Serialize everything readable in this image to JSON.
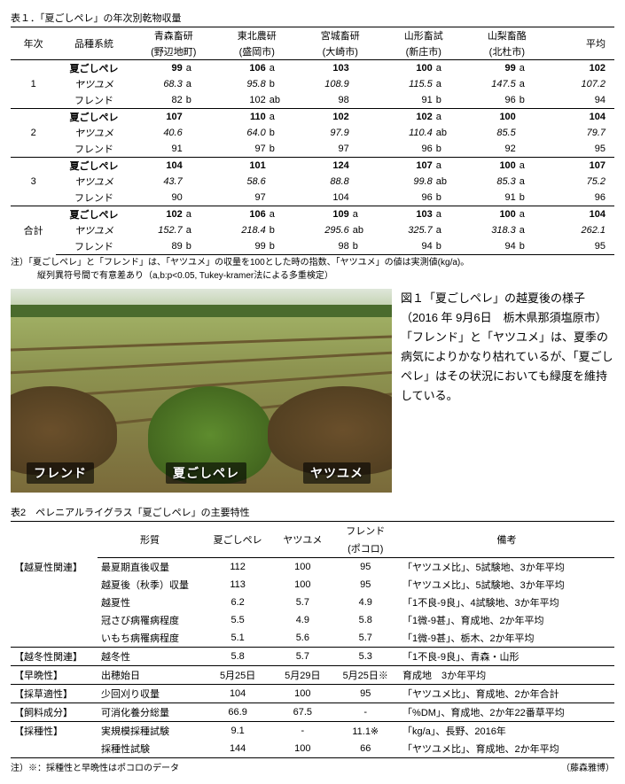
{
  "table1": {
    "title": "表１．「夏ごしペレ」の年次別乾物収量",
    "head": {
      "year": "年次",
      "variety": "品種系統",
      "sites": [
        {
          "name": "青森畜研",
          "sub": "(野辺地町)"
        },
        {
          "name": "東北農研",
          "sub": "(盛岡市)"
        },
        {
          "name": "宮城畜研",
          "sub": "(大崎市)"
        },
        {
          "name": "山形畜試",
          "sub": "(新庄市)"
        },
        {
          "name": "山梨畜酪",
          "sub": "(北杜市)"
        }
      ],
      "avg": "平均"
    },
    "varieties": {
      "natsu": "夏ごしペレ",
      "yatsu": "ヤツユメ",
      "fren": "フレンド"
    },
    "groups": [
      {
        "year": "1",
        "rows": [
          {
            "k": "natsu",
            "bold": true,
            "vals": [
              [
                "99",
                "a"
              ],
              [
                "106",
                "a"
              ],
              [
                "103",
                ""
              ],
              [
                "100",
                "a"
              ],
              [
                "99",
                "a"
              ]
            ],
            "avg": "102"
          },
          {
            "k": "yatsu",
            "ital": true,
            "vals": [
              [
                "68.3",
                "a"
              ],
              [
                "95.8",
                "b"
              ],
              [
                "108.9",
                ""
              ],
              [
                "115.5",
                "a"
              ],
              [
                "147.5",
                "a"
              ]
            ],
            "avg": "107.2"
          },
          {
            "k": "fren",
            "vals": [
              [
                "82",
                "b"
              ],
              [
                "102",
                "ab"
              ],
              [
                "98",
                ""
              ],
              [
                "91",
                "b"
              ],
              [
                "96",
                "b"
              ]
            ],
            "avg": "94"
          }
        ]
      },
      {
        "year": "2",
        "rows": [
          {
            "k": "natsu",
            "bold": true,
            "vals": [
              [
                "107",
                ""
              ],
              [
                "110",
                "a"
              ],
              [
                "102",
                ""
              ],
              [
                "102",
                "a"
              ],
              [
                "100",
                ""
              ]
            ],
            "avg": "104"
          },
          {
            "k": "yatsu",
            "ital": true,
            "vals": [
              [
                "40.6",
                ""
              ],
              [
                "64.0",
                "b"
              ],
              [
                "97.9",
                ""
              ],
              [
                "110.4",
                "ab"
              ],
              [
                "85.5",
                ""
              ]
            ],
            "avg": "79.7"
          },
          {
            "k": "fren",
            "vals": [
              [
                "91",
                ""
              ],
              [
                "97",
                "b"
              ],
              [
                "97",
                ""
              ],
              [
                "96",
                "b"
              ],
              [
                "92",
                ""
              ]
            ],
            "avg": "95"
          }
        ]
      },
      {
        "year": "3",
        "rows": [
          {
            "k": "natsu",
            "bold": true,
            "vals": [
              [
                "104",
                ""
              ],
              [
                "101",
                ""
              ],
              [
                "124",
                ""
              ],
              [
                "107",
                "a"
              ],
              [
                "100",
                "a"
              ]
            ],
            "avg": "107"
          },
          {
            "k": "yatsu",
            "ital": true,
            "vals": [
              [
                "43.7",
                ""
              ],
              [
                "58.6",
                ""
              ],
              [
                "88.8",
                ""
              ],
              [
                "99.8",
                "ab"
              ],
              [
                "85.3",
                "a"
              ]
            ],
            "avg": "75.2"
          },
          {
            "k": "fren",
            "vals": [
              [
                "90",
                ""
              ],
              [
                "97",
                ""
              ],
              [
                "104",
                ""
              ],
              [
                "96",
                "b"
              ],
              [
                "91",
                "b"
              ]
            ],
            "avg": "96"
          }
        ]
      },
      {
        "year": "合計",
        "rows": [
          {
            "k": "natsu",
            "bold": true,
            "vals": [
              [
                "102",
                "a"
              ],
              [
                "106",
                "a"
              ],
              [
                "109",
                "a"
              ],
              [
                "103",
                "a"
              ],
              [
                "100",
                "a"
              ]
            ],
            "avg": "104"
          },
          {
            "k": "yatsu",
            "ital": true,
            "vals": [
              [
                "152.7",
                "a"
              ],
              [
                "218.4",
                "b"
              ],
              [
                "295.6",
                "ab"
              ],
              [
                "325.7",
                "a"
              ],
              [
                "318.3",
                "a"
              ]
            ],
            "avg": "262.1"
          },
          {
            "k": "fren",
            "vals": [
              [
                "89",
                "b"
              ],
              [
                "99",
                "b"
              ],
              [
                "98",
                "b"
              ],
              [
                "94",
                "b"
              ],
              [
                "94",
                "b"
              ]
            ],
            "avg": "95"
          }
        ]
      }
    ],
    "notes": [
      "注）「夏ごしペレ」と「フレンド」は、「ヤツユメ」の収量を100とした時の指数、「ヤツユメ」の値は実測値(kg/a)。",
      "　　　縦列異符号間で有意差あり（a,b:p<0.05, Tukey-kramer法による多重検定）"
    ]
  },
  "figure1": {
    "labels": {
      "left": "フレンド",
      "mid": "夏ごしペレ",
      "right": "ヤツユメ"
    },
    "caption": "図１「夏ごしペレ」の越夏後の様子（2016 年 9月6日　栃木県那須塩原市）\n「フレンド」と「ヤツユメ」は、夏季の病気によりかなり枯れているが、「夏ごしペレ」はその状況においても緑度を維持している。"
  },
  "table2": {
    "title": "表2　ペレニアルライグラス「夏ごしペレ」の主要特性",
    "head": {
      "trait": "形質",
      "c1": "夏ごしペレ",
      "c2": "ヤツユメ",
      "c3": "フレンド",
      "c3sub": "(ポコロ)",
      "remark": "備考"
    },
    "rows": [
      {
        "cat": "【越夏性関連】",
        "trait": "最夏期直後収量",
        "v": [
          "112",
          "100",
          "95"
        ],
        "rem": "「ヤツユメ比」、5試験地、3か年平均"
      },
      {
        "cat": "",
        "trait": "越夏後（秋季）収量",
        "v": [
          "113",
          "100",
          "95"
        ],
        "rem": "「ヤツユメ比」、5試験地、3か年平均"
      },
      {
        "cat": "",
        "trait": "越夏性",
        "v": [
          "6.2",
          "5.7",
          "4.9"
        ],
        "rem": "「1不良-9良」、4試験地、3か年平均"
      },
      {
        "cat": "",
        "trait": "冠さび病罹病程度",
        "v": [
          "5.5",
          "4.9",
          "5.8"
        ],
        "rem": "「1微-9甚」、育成地、2か年平均"
      },
      {
        "cat": "",
        "trait": "いもち病罹病程度",
        "v": [
          "5.1",
          "5.6",
          "5.7"
        ],
        "rem": "「1微-9甚」、栃木、2か年平均"
      },
      {
        "cat": "【越冬性関連】",
        "trait": "越冬性",
        "v": [
          "5.8",
          "5.7",
          "5.3"
        ],
        "rem": "「1不良-9良」、青森・山形"
      },
      {
        "cat": "【早晩性】",
        "trait": "出穂始日",
        "v": [
          "5月25日",
          "5月29日",
          "5月25日※"
        ],
        "rem": "育成地　3か年平均"
      },
      {
        "cat": "【採草適性】",
        "trait": "少回刈り収量",
        "v": [
          "104",
          "100",
          "95"
        ],
        "rem": "「ヤツユメ比」、育成地、2か年合計"
      },
      {
        "cat": "【飼料成分】",
        "trait": "可消化養分総量",
        "v": [
          "66.9",
          "67.5",
          "-"
        ],
        "rem": "「%DM」、育成地、2か年22番草平均"
      },
      {
        "cat": "【採種性】",
        "trait": "実規模採種試験",
        "v": [
          "9.1",
          "-",
          "11.1※"
        ],
        "rem": "「kg/a」、長野、2016年"
      },
      {
        "cat": "",
        "trait": "採種性試験",
        "v": [
          "144",
          "100",
          "66"
        ],
        "rem": "「ヤツユメ比」、育成地、2か年平均"
      }
    ],
    "borderAfter": [
      4,
      5,
      6,
      7,
      8
    ],
    "foot_left": "注）※：採種性と早晩性はポコロのデータ",
    "foot_right": "（藤森雅博）"
  }
}
